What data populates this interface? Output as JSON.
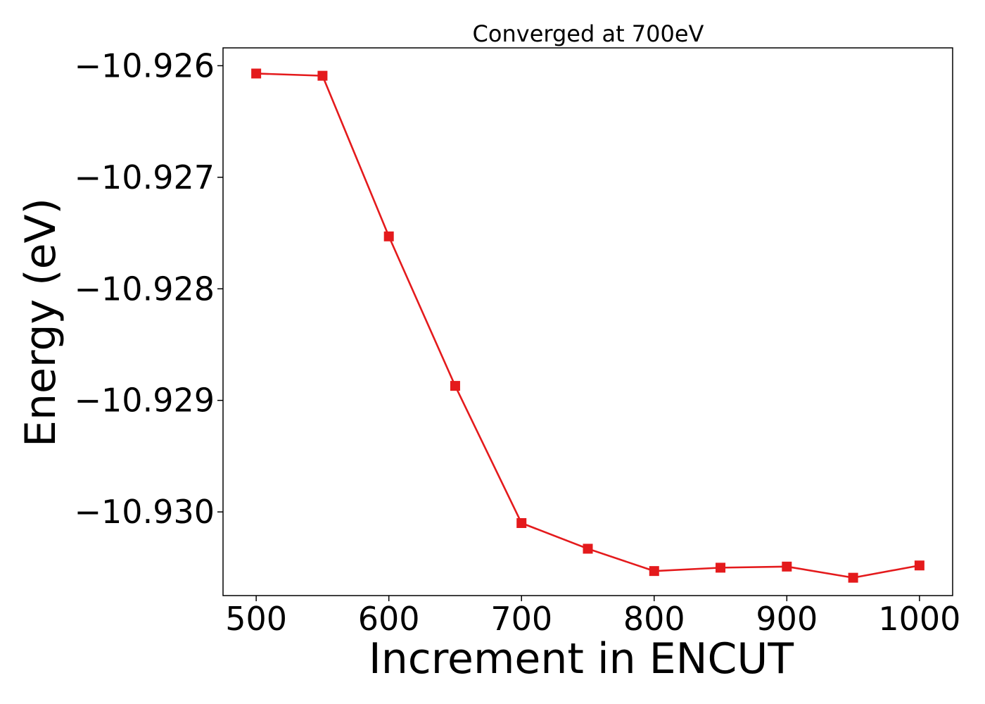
{
  "chart_data": {
    "type": "line",
    "title": "Converged at 700eV",
    "xlabel": "Increment in ENCUT",
    "ylabel": "Energy (eV)",
    "x": [
      500,
      550,
      600,
      650,
      700,
      750,
      800,
      850,
      900,
      950,
      1000
    ],
    "series": [
      {
        "values": [
          -10.92607,
          -10.92609,
          -10.92753,
          -10.92887,
          -10.9301,
          -10.93033,
          -10.93053,
          -10.9305,
          -10.93049,
          -10.93059,
          -10.93048
        ],
        "color": "#e41a1c",
        "marker": "square"
      }
    ],
    "xticks": [
      500,
      600,
      700,
      800,
      900,
      1000
    ],
    "xtick_labels": [
      "500",
      "600",
      "700",
      "800",
      "900",
      "1000"
    ],
    "yticks": [
      -10.926,
      -10.927,
      -10.928,
      -10.929,
      -10.93
    ],
    "ytick_labels": [
      "−10.926",
      "−10.927",
      "−10.928",
      "−10.929",
      "−10.930"
    ],
    "xlim": [
      475,
      1025
    ],
    "ylim": [
      -10.93075,
      -10.92584
    ],
    "grid": false,
    "legend": false
  }
}
